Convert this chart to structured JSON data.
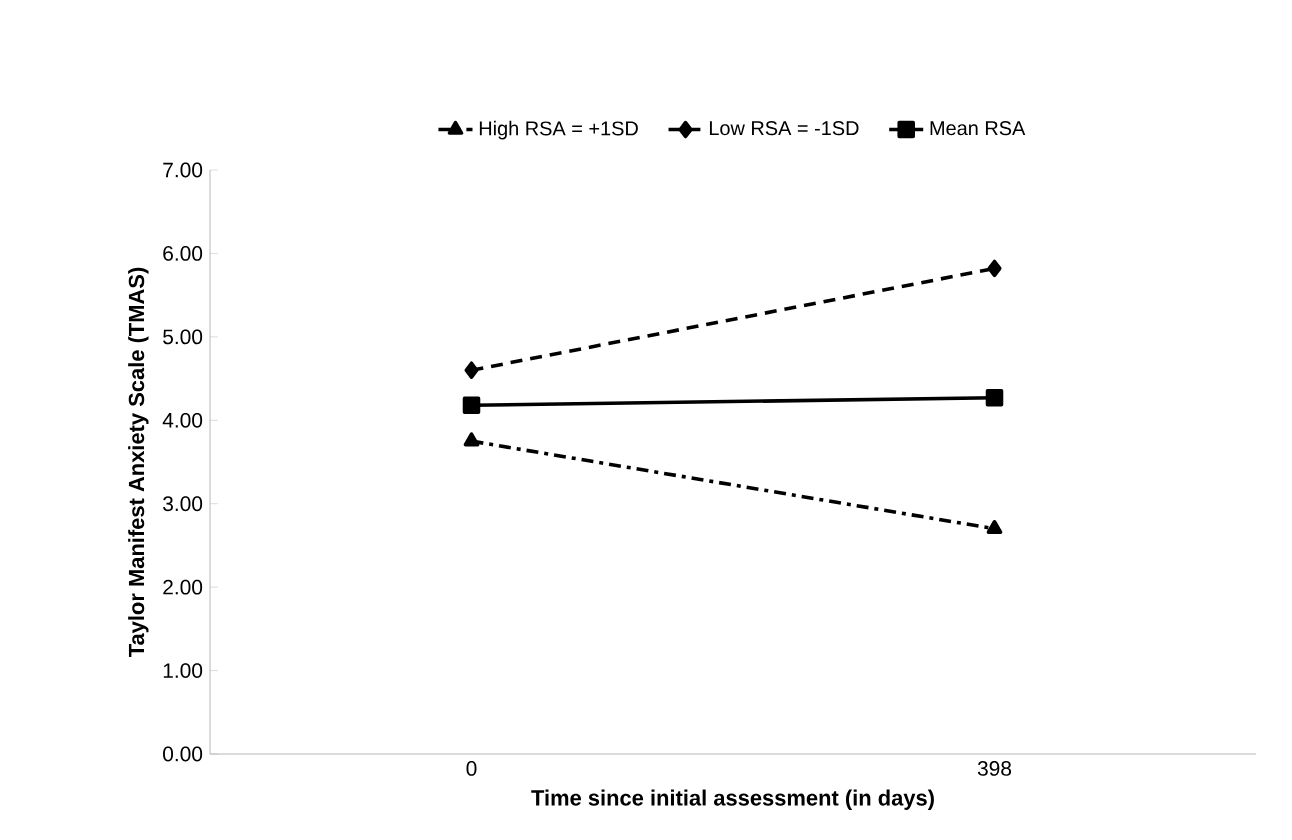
{
  "chart_data": {
    "type": "line",
    "xlabel": "Time since initial assessment (in days)",
    "ylabel": "Taylor Manifest Anxiety Scale (TMAS)",
    "categories": [
      "0",
      "398"
    ],
    "series": [
      {
        "name": "High RSA = +1SD",
        "color": "#000000",
        "values": [
          3.75,
          2.7
        ],
        "marker": "triangle",
        "line_style": "dashdot"
      },
      {
        "name": "Low RSA = -1SD",
        "color": "#000000",
        "values": [
          4.6,
          5.82
        ],
        "marker": "diamond",
        "line_style": "dashed"
      },
      {
        "name": "Mean RSA",
        "color": "#000000",
        "values": [
          4.18,
          4.27
        ],
        "marker": "square",
        "line_style": "solid"
      }
    ],
    "ylim": [
      0,
      7
    ],
    "yticks": [
      {
        "value": 0,
        "label": "0.00"
      },
      {
        "value": 1,
        "label": "1.00"
      },
      {
        "value": 2,
        "label": "2.00"
      },
      {
        "value": 3,
        "label": "3.00"
      },
      {
        "value": 4,
        "label": "4.00"
      },
      {
        "value": 5,
        "label": "5.00"
      },
      {
        "value": 6,
        "label": "6.00"
      },
      {
        "value": 7,
        "label": "7.00"
      }
    ],
    "grid": false,
    "legend": "top"
  }
}
